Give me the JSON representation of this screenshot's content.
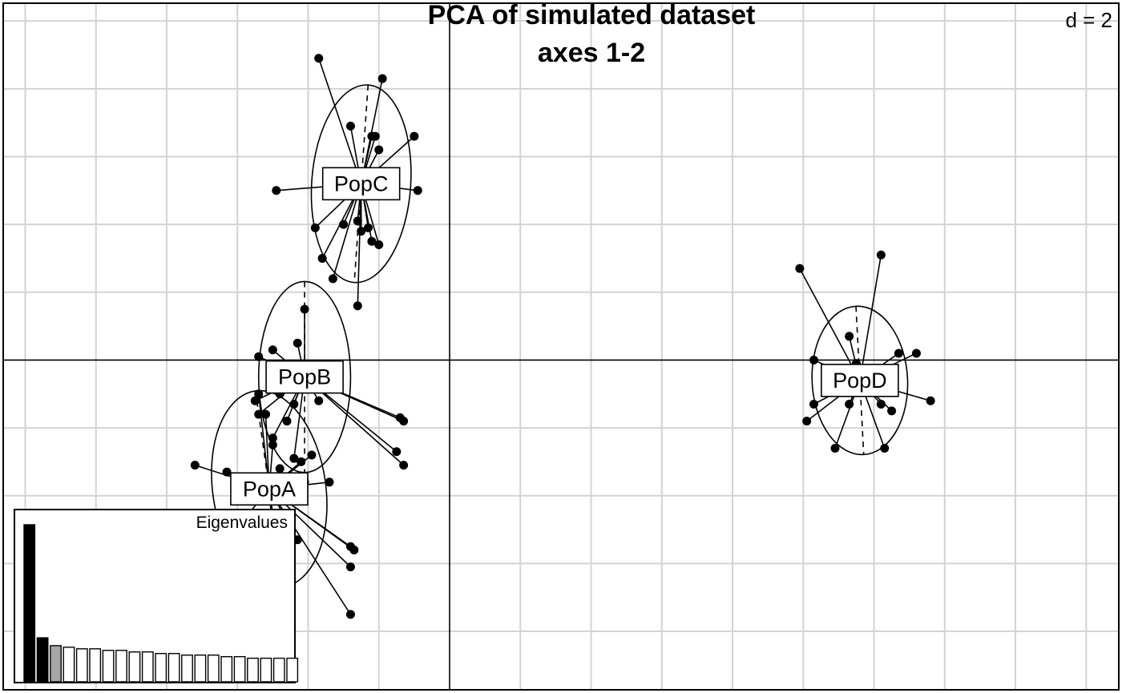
{
  "chart_data": {
    "type": "scatter",
    "title_lines": [
      "PCA of simulated dataset",
      "axes 1-2"
    ],
    "grid_label": "d = 2",
    "grid_step": 2,
    "xlim": [
      -12.6,
      18.9
    ],
    "ylim": [
      -9.7,
      10.5
    ],
    "groups": [
      {
        "name": "PopC",
        "center": [
          -2.5,
          5.2
        ],
        "ellipse": {
          "rx": 1.4,
          "ry": 2.8,
          "angle": 4
        },
        "points": [
          [
            -3.7,
            8.9
          ],
          [
            -1.9,
            8.3
          ],
          [
            -2.8,
            6.9
          ],
          [
            -2.2,
            6.6
          ],
          [
            -2.1,
            6.6
          ],
          [
            -1.0,
            6.6
          ],
          [
            -2.0,
            6.2
          ],
          [
            -4.9,
            5.0
          ],
          [
            -0.9,
            5.0
          ],
          [
            -2.6,
            4.1
          ],
          [
            -3.0,
            4.0
          ],
          [
            -2.3,
            3.9
          ],
          [
            -3.8,
            3.9
          ],
          [
            -2.5,
            3.8
          ],
          [
            -2.2,
            3.5
          ],
          [
            -2.0,
            3.4
          ],
          [
            -3.6,
            3.0
          ],
          [
            -3.3,
            2.4
          ],
          [
            -2.6,
            1.6
          ]
        ]
      },
      {
        "name": "PopB",
        "center": [
          -4.1,
          -0.5
        ],
        "ellipse": {
          "rx": 1.3,
          "ry": 2.7,
          "angle": 0
        },
        "points": [
          [
            -4.1,
            1.5
          ],
          [
            -4.3,
            0.5
          ],
          [
            -5.0,
            0.3
          ],
          [
            -5.4,
            0.1
          ],
          [
            -4.8,
            -1.0
          ],
          [
            -5.5,
            -1.2
          ],
          [
            -4.4,
            -1.3
          ],
          [
            -1.4,
            -1.7
          ],
          [
            -1.3,
            -1.8
          ],
          [
            -4.6,
            -1.8
          ],
          [
            -5.4,
            -1.6
          ],
          [
            -5.0,
            -2.3
          ],
          [
            -1.5,
            -2.7
          ],
          [
            -1.3,
            -3.1
          ],
          [
            -4.4,
            -2.9
          ],
          [
            -3.7,
            -1.2
          ]
        ]
      },
      {
        "name": "PopA",
        "center": [
          -5.1,
          -3.8
        ],
        "ellipse": {
          "rx": 1.6,
          "ry": 2.8,
          "angle": -8
        },
        "points": [
          [
            -7.2,
            -3.1
          ],
          [
            -6.3,
            -3.3
          ],
          [
            -5.4,
            -1.0
          ],
          [
            -5.2,
            -1.6
          ],
          [
            -5.0,
            -2.5
          ],
          [
            -4.2,
            -3.0
          ],
          [
            -4.8,
            -3.2
          ],
          [
            -3.9,
            -2.8
          ],
          [
            -4.1,
            -3.6
          ],
          [
            -3.4,
            -3.6
          ],
          [
            -5.9,
            -4.8
          ],
          [
            -5.0,
            -5.2
          ],
          [
            -4.3,
            -5.3
          ],
          [
            -2.8,
            -5.5
          ],
          [
            -2.7,
            -5.6
          ],
          [
            -2.8,
            -6.1
          ],
          [
            -2.8,
            -7.5
          ]
        ]
      },
      {
        "name": "PopD",
        "center": [
          11.6,
          -0.6
        ],
        "ellipse": {
          "rx": 1.35,
          "ry": 2.1,
          "angle": -3
        },
        "points": [
          [
            9.9,
            2.7
          ],
          [
            12.2,
            3.1
          ],
          [
            11.3,
            0.7
          ],
          [
            12.7,
            0.2
          ],
          [
            10.3,
            0.0
          ],
          [
            11.5,
            -0.1
          ],
          [
            13.6,
            -1.2
          ],
          [
            10.3,
            -1.3
          ],
          [
            11.3,
            -1.3
          ],
          [
            12.2,
            -1.3
          ],
          [
            12.5,
            -1.5
          ],
          [
            10.1,
            -1.8
          ],
          [
            10.9,
            -2.6
          ],
          [
            12.3,
            -2.6
          ],
          [
            13.2,
            0.2
          ]
        ]
      }
    ],
    "eigenvalues": {
      "title": "Eigenvalues",
      "values": [
        100,
        28,
        23,
        22,
        21,
        21,
        20,
        20,
        19,
        19,
        18,
        18,
        17,
        17,
        17,
        16,
        16,
        15,
        15,
        15,
        15
      ],
      "bar_colors": [
        "#000000",
        "#000000",
        "#a6a6a6",
        "#ffffff",
        "#ffffff",
        "#ffffff",
        "#ffffff",
        "#ffffff",
        "#ffffff",
        "#ffffff",
        "#ffffff",
        "#ffffff",
        "#ffffff",
        "#ffffff",
        "#ffffff",
        "#ffffff",
        "#ffffff",
        "#ffffff",
        "#ffffff",
        "#ffffff",
        "#ffffff"
      ]
    },
    "colors": {
      "grid": "#d3d3d3",
      "axis": "#000000",
      "point": "#000000",
      "background": "#ffffff"
    },
    "grid": true
  }
}
